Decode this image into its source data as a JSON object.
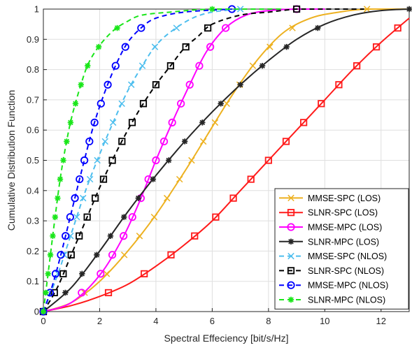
{
  "chart_data": {
    "type": "line",
    "title": "",
    "xlabel": "Spectral Effeciency [bit/s/Hz]",
    "ylabel": "Cumulative Distribution Function",
    "xlim": [
      0,
      13
    ],
    "ylim": [
      0,
      1
    ],
    "xticks": [
      0,
      2,
      4,
      6,
      8,
      10,
      12
    ],
    "yticks": [
      0,
      0.1,
      0.2,
      0.3,
      0.4,
      0.5,
      0.6,
      0.7,
      0.8,
      0.9,
      1
    ],
    "xtick_labels": [
      "0",
      "2",
      "4",
      "6",
      "8",
      "10",
      "12"
    ],
    "ytick_labels": [
      "0",
      "0.1",
      "0.2",
      "0.3",
      "0.4",
      "0.5",
      "0.6",
      "0.7",
      "0.8",
      "0.9",
      "1"
    ],
    "grid": true,
    "legend_position": "bottom-right",
    "series": [
      {
        "name": "MMSE-SPC (LOS)",
        "color": "#EDB120",
        "marker": "x",
        "dashed": false,
        "x": [
          0,
          1.0,
          2.0,
          3.0,
          4.0,
          5.0,
          5.8,
          6.6,
          7.5,
          8.5,
          9.5,
          10.5,
          11.5,
          12.5,
          13.0
        ],
        "y": [
          0,
          0.03,
          0.1,
          0.2,
          0.32,
          0.46,
          0.58,
          0.7,
          0.82,
          0.92,
          0.97,
          0.99,
          1.0,
          1.0,
          1.0
        ]
      },
      {
        "name": "SLNR-SPC (LOS)",
        "color": "#FF1A1A",
        "marker": "square",
        "dashed": false,
        "x": [
          0,
          1.0,
          2.0,
          3.0,
          4.0,
          5.0,
          6.0,
          7.0,
          8.0,
          9.0,
          10.0,
          11.0,
          12.0,
          13.0
        ],
        "y": [
          0,
          0.02,
          0.05,
          0.09,
          0.15,
          0.22,
          0.3,
          0.4,
          0.5,
          0.6,
          0.7,
          0.8,
          0.89,
          0.97
        ]
      },
      {
        "name": "MMSE-MPC (LOS)",
        "color": "#FF00FF",
        "marker": "circle",
        "dashed": false,
        "x": [
          0,
          1.0,
          2.0,
          2.8,
          3.4,
          4.0,
          4.6,
          5.2,
          5.8,
          6.5,
          7.2,
          8.0,
          9.0,
          10.0
        ],
        "y": [
          0,
          0.03,
          0.12,
          0.24,
          0.36,
          0.5,
          0.63,
          0.75,
          0.86,
          0.94,
          0.98,
          0.995,
          1.0,
          1.0
        ]
      },
      {
        "name": "SLNR-MPC (LOS)",
        "color": "#262626",
        "marker": "asterisk",
        "dashed": false,
        "x": [
          0,
          1.0,
          2.0,
          3.0,
          4.0,
          5.0,
          6.0,
          7.0,
          8.0,
          9.0,
          10.0,
          11.0,
          12.0,
          13.0
        ],
        "y": [
          0,
          0.08,
          0.2,
          0.33,
          0.45,
          0.56,
          0.66,
          0.75,
          0.83,
          0.9,
          0.95,
          0.98,
          0.995,
          1.0
        ]
      },
      {
        "name": "MMSE-SPC (NLOS)",
        "color": "#4DBEEE",
        "marker": "x",
        "dashed": true,
        "x": [
          0,
          0.5,
          1.0,
          1.5,
          2.0,
          2.5,
          3.0,
          3.5,
          4.0,
          4.6,
          5.3,
          6.0,
          7.0
        ],
        "y": [
          0,
          0.12,
          0.26,
          0.4,
          0.52,
          0.63,
          0.73,
          0.81,
          0.88,
          0.93,
          0.97,
          0.99,
          1.0
        ]
      },
      {
        "name": "SLNR-SPC (NLOS)",
        "color": "#000000",
        "marker": "square",
        "dashed": true,
        "x": [
          0,
          0.5,
          1.0,
          1.5,
          2.0,
          2.5,
          3.0,
          3.5,
          4.0,
          4.5,
          5.0,
          5.5,
          6.0,
          7.0,
          8.0,
          9.0,
          10.0,
          11.4
        ],
        "y": [
          0,
          0.08,
          0.19,
          0.3,
          0.41,
          0.51,
          0.6,
          0.68,
          0.75,
          0.81,
          0.87,
          0.91,
          0.95,
          0.98,
          0.99,
          1.0,
          1.0,
          1.0
        ]
      },
      {
        "name": "MMSE-MPC (NLOS)",
        "color": "#0000FF",
        "marker": "circle",
        "dashed": true,
        "x": [
          0,
          0.3,
          0.6,
          1.0,
          1.4,
          1.8,
          2.2,
          2.6,
          3.0,
          3.5,
          4.0,
          5.0,
          6.7
        ],
        "y": [
          0,
          0.08,
          0.18,
          0.33,
          0.48,
          0.62,
          0.73,
          0.82,
          0.89,
          0.94,
          0.97,
          0.99,
          1.0
        ]
      },
      {
        "name": "SLNR-MPC (NLOS)",
        "color": "#1AE61A",
        "marker": "asterisk",
        "dashed": true,
        "x": [
          0,
          0.2,
          0.4,
          0.6,
          0.8,
          1.0,
          1.3,
          1.6,
          2.0,
          2.5,
          3.0,
          3.5,
          4.5,
          6.0,
          8.5
        ],
        "y": [
          0,
          0.15,
          0.3,
          0.44,
          0.55,
          0.64,
          0.74,
          0.82,
          0.88,
          0.93,
          0.96,
          0.98,
          0.99,
          1.0,
          1.0
        ]
      }
    ]
  }
}
